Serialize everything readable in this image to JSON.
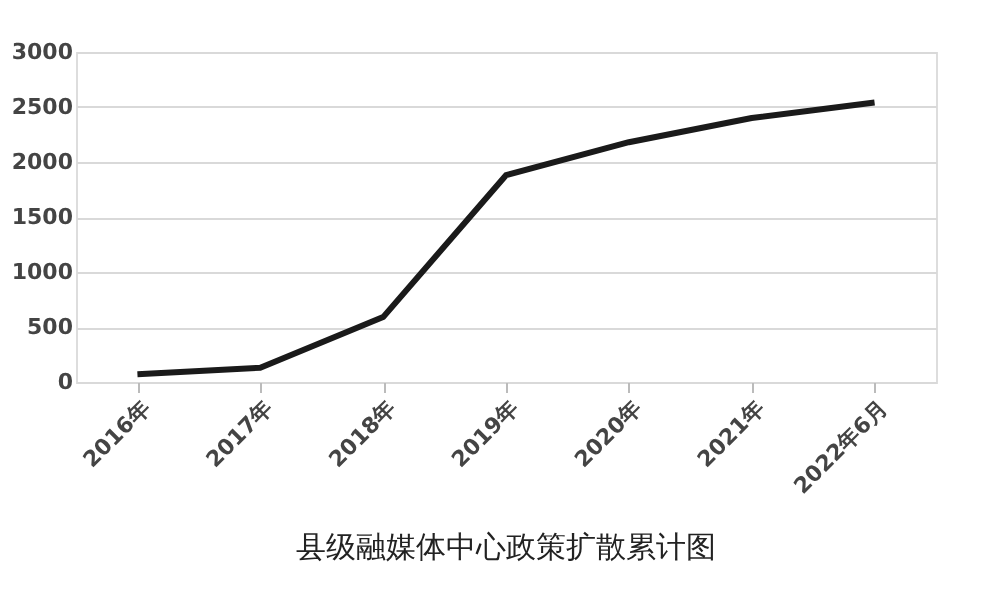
{
  "chart_data": {
    "type": "line",
    "title": "县级融媒体中心政策扩散累计图",
    "categories": [
      "2016年",
      "2017年",
      "2018年",
      "2019年",
      "2020年",
      "2021年",
      "2022年6月"
    ],
    "series": [
      {
        "color": "#1a1a1a",
        "values": [
          70,
          130,
          590,
          1880,
          2180,
          2400,
          2540
        ]
      }
    ],
    "ylim": [
      0,
      3000
    ],
    "yticks": [
      0,
      500,
      1000,
      1500,
      2000,
      2500,
      3000
    ],
    "grid": "y",
    "marker": "none",
    "line_style": "solid"
  }
}
